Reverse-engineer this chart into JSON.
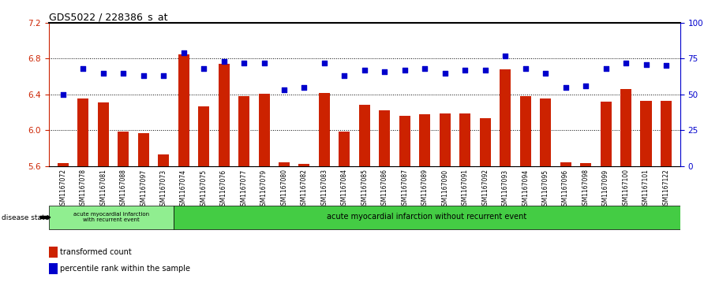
{
  "title": "GDS5022 / 228386_s_at",
  "samples": [
    "GSM1167072",
    "GSM1167078",
    "GSM1167081",
    "GSM1167088",
    "GSM1167097",
    "GSM1167073",
    "GSM1167074",
    "GSM1167075",
    "GSM1167076",
    "GSM1167077",
    "GSM1167079",
    "GSM1167080",
    "GSM1167082",
    "GSM1167083",
    "GSM1167084",
    "GSM1167085",
    "GSM1167086",
    "GSM1167087",
    "GSM1167089",
    "GSM1167090",
    "GSM1167091",
    "GSM1167092",
    "GSM1167093",
    "GSM1167094",
    "GSM1167095",
    "GSM1167096",
    "GSM1167098",
    "GSM1167099",
    "GSM1167100",
    "GSM1167101",
    "GSM1167122"
  ],
  "bar_values": [
    5.63,
    6.35,
    6.31,
    5.98,
    5.97,
    5.73,
    6.85,
    6.27,
    6.74,
    6.38,
    6.41,
    5.64,
    5.62,
    6.42,
    5.98,
    6.28,
    6.22,
    6.16,
    6.18,
    6.19,
    6.19,
    6.13,
    6.68,
    6.38,
    6.35,
    5.64,
    5.63,
    6.32,
    6.46,
    6.33,
    6.33
  ],
  "dot_values": [
    50,
    68,
    65,
    65,
    63,
    63,
    79,
    68,
    73,
    72,
    72,
    53,
    55,
    72,
    63,
    67,
    66,
    67,
    68,
    65,
    67,
    67,
    77,
    68,
    65,
    55,
    56,
    68,
    72,
    71,
    70
  ],
  "bar_color": "#cc2200",
  "dot_color": "#0000cc",
  "ylim_left": [
    5.6,
    7.2
  ],
  "ylim_right": [
    0,
    100
  ],
  "yticks_left": [
    5.6,
    6.0,
    6.4,
    6.8,
    7.2
  ],
  "yticks_right": [
    0,
    25,
    50,
    75,
    100
  ],
  "grid_lines": [
    6.0,
    6.4,
    6.8
  ],
  "disease_group1_count": 6,
  "disease_group1_label": "acute myocardial infarction\nwith recurrent event",
  "disease_group2_label": "acute myocardial infarction without recurrent event",
  "disease_state_label": "disease state",
  "legend_bar_label": "transformed count",
  "legend_dot_label": "percentile rank within the sample",
  "group1_color": "#90ee90",
  "group2_color": "#44cc44",
  "bg_color": "#c8c8c8"
}
